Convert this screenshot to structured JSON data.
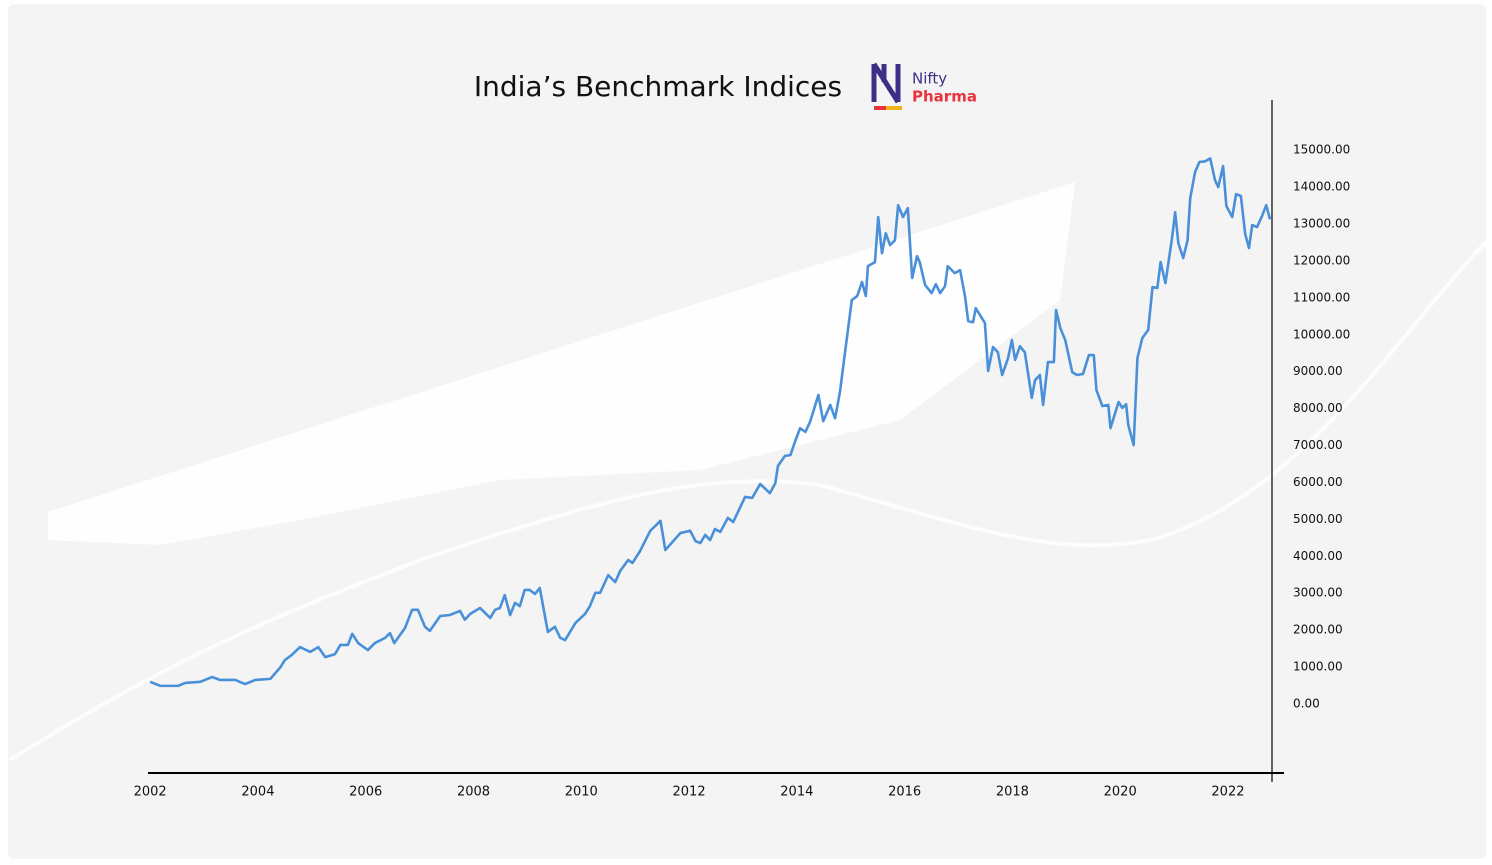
{
  "chart_data": {
    "type": "line",
    "title": "India’s Benchmark Indices",
    "logo_text": [
      "Nifty",
      "Pharma"
    ],
    "color": "#4a90d9",
    "xlim": [
      2001.96,
      2023.04
    ],
    "xticks": [
      2002,
      2004,
      2006,
      2008,
      2010,
      2012,
      2014,
      2016,
      2018,
      2020,
      2022
    ],
    "ylim": [
      -1870,
      16360
    ],
    "yticks": [
      {
        "value": 0,
        "label": "0.00"
      },
      {
        "value": 1000,
        "label": "1000.00"
      },
      {
        "value": 2000,
        "label": "2000.00"
      },
      {
        "value": 3000,
        "label": "3000.00"
      },
      {
        "value": 4000,
        "label": "4000.00"
      },
      {
        "value": 5000,
        "label": "5000.00"
      },
      {
        "value": 6000,
        "label": "6000.00"
      },
      {
        "value": 7000,
        "label": "7000.00"
      },
      {
        "value": 8000,
        "label": "8000.00"
      },
      {
        "value": 9000,
        "label": "9000.00"
      },
      {
        "value": 10000,
        "label": "10000.00"
      },
      {
        "value": 11000,
        "label": "11000.00"
      },
      {
        "value": 12000,
        "label": "12000.00"
      },
      {
        "value": 13000,
        "label": "13000.00"
      },
      {
        "value": 14000,
        "label": "14000.00"
      },
      {
        "value": 15000,
        "label": "15000.00"
      }
    ],
    "grid": false,
    "x": [
      2002.0,
      2002.19,
      2002.52,
      2002.65,
      2002.93,
      2003.15,
      2003.3,
      2003.58,
      2003.76,
      2003.95,
      2004.23,
      2004.41,
      2004.5,
      2004.63,
      2004.78,
      2004.97,
      2005.12,
      2005.25,
      2005.43,
      2005.53,
      2005.67,
      2005.75,
      2005.86,
      2006.04,
      2006.17,
      2006.36,
      2006.45,
      2006.53,
      2006.73,
      2006.86,
      2006.97,
      2007.1,
      2007.19,
      2007.38,
      2007.56,
      2007.75,
      2007.84,
      2007.94,
      2008.12,
      2008.31,
      2008.4,
      2008.49,
      2008.58,
      2008.68,
      2008.77,
      2008.86,
      2008.95,
      2009.04,
      2009.14,
      2009.23,
      2009.38,
      2009.51,
      2009.61,
      2009.7,
      2009.89,
      2010.07,
      2010.16,
      2010.26,
      2010.35,
      2010.5,
      2010.63,
      2010.72,
      2010.87,
      2010.95,
      2011.09,
      2011.28,
      2011.47,
      2011.56,
      2011.84,
      2012.02,
      2012.12,
      2012.21,
      2012.3,
      2012.39,
      2012.48,
      2012.58,
      2012.72,
      2012.82,
      2013.04,
      2013.17,
      2013.32,
      2013.5,
      2013.6,
      2013.65,
      2013.78,
      2013.88,
      2013.97,
      2014.06,
      2014.16,
      2014.25,
      2014.4,
      2014.49,
      2014.62,
      2014.71,
      2014.8,
      2014.9,
      2015.02,
      2015.12,
      2015.21,
      2015.28,
      2015.32,
      2015.45,
      2015.51,
      2015.58,
      2015.65,
      2015.73,
      2015.82,
      2015.88,
      2015.97,
      2016.06,
      2016.14,
      2016.23,
      2016.28,
      2016.38,
      2016.5,
      2016.58,
      2016.66,
      2016.75,
      2016.8,
      2016.93,
      2017.03,
      2017.12,
      2017.18,
      2017.27,
      2017.32,
      2017.49,
      2017.55,
      2017.64,
      2017.73,
      2017.81,
      2017.92,
      2017.99,
      2018.05,
      2018.14,
      2018.23,
      2018.36,
      2018.42,
      2018.51,
      2018.57,
      2018.66,
      2018.77,
      2018.81,
      2018.89,
      2018.98,
      2019.11,
      2019.2,
      2019.31,
      2019.42,
      2019.51,
      2019.56,
      2019.67,
      2019.78,
      2019.82,
      2019.97,
      2020.04,
      2020.11,
      2020.15,
      2020.25,
      2020.32,
      2020.41,
      2020.52,
      2020.6,
      2020.69,
      2020.75,
      2020.84,
      2020.97,
      2021.02,
      2021.08,
      2021.17,
      2021.25,
      2021.3,
      2021.39,
      2021.47,
      2021.58,
      2021.67,
      2021.76,
      2021.82,
      2021.91,
      2021.97,
      2022.08,
      2022.15,
      2022.24,
      2022.32,
      2022.39,
      2022.45,
      2022.54,
      2022.63,
      2022.71,
      2022.78
    ],
    "values": [
      600,
      490,
      490,
      570,
      600,
      730,
      650,
      650,
      540,
      650,
      680,
      980,
      1190,
      1330,
      1540,
      1410,
      1540,
      1270,
      1350,
      1600,
      1600,
      1900,
      1650,
      1460,
      1650,
      1790,
      1920,
      1650,
      2060,
      2550,
      2550,
      2090,
      1980,
      2380,
      2410,
      2520,
      2280,
      2440,
      2600,
      2330,
      2550,
      2600,
      2950,
      2410,
      2740,
      2650,
      3090,
      3090,
      2980,
      3140,
      1950,
      2090,
      1790,
      1730,
      2190,
      2440,
      2650,
      3010,
      3010,
      3490,
      3300,
      3600,
      3900,
      3820,
      4140,
      4690,
      4960,
      4170,
      4630,
      4690,
      4410,
      4360,
      4580,
      4440,
      4740,
      4660,
      5040,
      4930,
      5610,
      5580,
      5960,
      5710,
      5980,
      6450,
      6720,
      6740,
      7120,
      7470,
      7370,
      7660,
      8370,
      7660,
      8100,
      7740,
      8450,
      9590,
      10940,
      11050,
      11430,
      11050,
      11860,
      11970,
      13190,
      12210,
      12750,
      12430,
      12560,
      13510,
      13190,
      13430,
      11540,
      12130,
      11970,
      11350,
      11130,
      11370,
      11130,
      11320,
      11860,
      11670,
      11750,
      11050,
      10370,
      10340,
      10720,
      10320,
      9020,
      9670,
      9530,
      8910,
      9370,
      9860,
      9320,
      9690,
      9530,
      8290,
      8770,
      8910,
      8100,
      9260,
      9260,
      10670,
      10180,
      9860,
      8990,
      8910,
      8940,
      9450,
      9450,
      8500,
      8070,
      8100,
      7470,
      8180,
      8020,
      8120,
      7560,
      7010,
      9370,
      9910,
      10130,
      11290,
      11270,
      11970,
      11400,
      12700,
      13320,
      12480,
      12080,
      12560,
      13700,
      14410,
      14680,
      14700,
      14780,
      14190,
      14000,
      14570,
      13490,
      13190,
      13810,
      13760,
      12730,
      12350,
      12970,
      12920,
      13210,
      13510,
      13130
    ]
  }
}
